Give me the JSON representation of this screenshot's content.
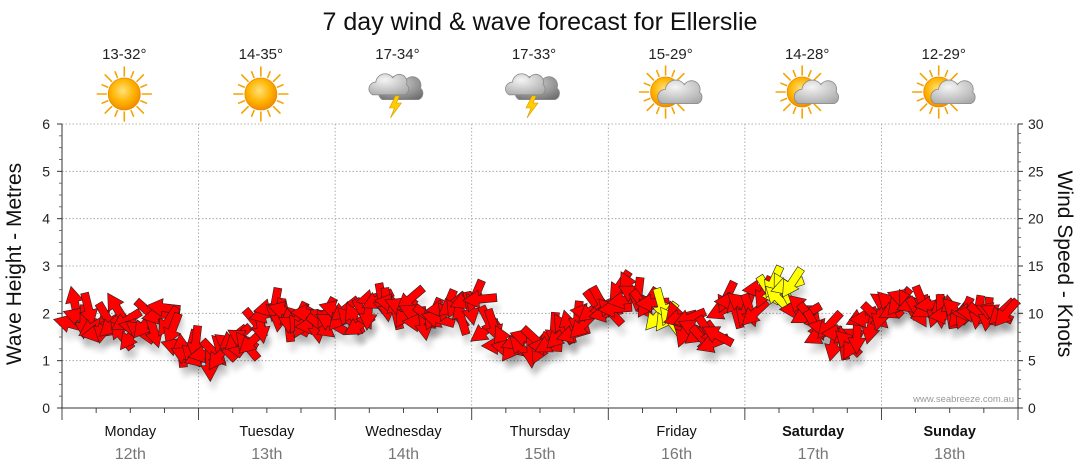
{
  "title": "7 day wind & wave forecast for Ellerslie",
  "credit": "www.seabreeze.com.au",
  "chart_data": {
    "type": "line",
    "left_axis": {
      "label": "Wave Height - Metres",
      "min": 0,
      "max": 6,
      "ticks": [
        0,
        1,
        2,
        3,
        4,
        5,
        6
      ]
    },
    "right_axis": {
      "label": "Wind Speed - Knots",
      "min": 0,
      "max": 30,
      "ticks": [
        0,
        5,
        10,
        15,
        20,
        25,
        30
      ]
    },
    "grid": "dotted",
    "days": [
      {
        "name": "Monday",
        "date": "12th",
        "temp": "13-32°",
        "icon": "sunny-icon",
        "weekend": false
      },
      {
        "name": "Tuesday",
        "date": "13th",
        "temp": "14-35°",
        "icon": "sunny-icon",
        "weekend": false
      },
      {
        "name": "Wednesday",
        "date": "14th",
        "temp": "17-34°",
        "icon": "storm-icon",
        "weekend": false
      },
      {
        "name": "Thursday",
        "date": "15th",
        "temp": "17-33°",
        "icon": "storm-icon",
        "weekend": false
      },
      {
        "name": "Friday",
        "date": "16th",
        "temp": "15-29°",
        "icon": "partly-cloudy-icon",
        "weekend": false
      },
      {
        "name": "Saturday",
        "date": "17th",
        "temp": "14-28°",
        "icon": "partly-cloudy-icon",
        "weekend": true
      },
      {
        "name": "Sunday",
        "date": "18th",
        "temp": "12-29°",
        "icon": "partly-cloudy-icon",
        "weekend": true
      }
    ],
    "series": [
      {
        "name": "Wind",
        "unit": "knots",
        "color_strong": "#ff0000",
        "color_light": "#ffff00",
        "values": [
          8.9,
          11.1,
          9.6,
          9.1,
          10.4,
          8.6,
          7.9,
          8.6,
          9.5,
          8.8,
          10.6,
          7.7,
          9.2,
          7.6,
          8.5,
          8.1,
          8.8,
          10.1,
          8.1,
          9.8,
          10.6,
          9.1,
          8.3,
          6.4,
          6.1,
          5.5,
          6.5,
          6.9,
          5.3,
          5.7,
          4.6,
          5.8,
          5.5,
          6.4,
          6.7,
          7.4,
          7.4,
          7.3,
          6.6,
          7.0,
          9.0,
          8.6,
          9.9,
          10.6,
          10.9,
          9.8,
          10.3,
          8.8,
          8.7,
          9.5,
          9.0,
          10.0,
          8.7,
          8.6,
          8.6,
          10.0,
          9.0,
          10.4,
          9.6,
          10.4,
          9.3,
          9.5,
          8.7,
          9.9,
          10.0,
          11.6,
          11.4,
          11.4,
          10.9,
          11.1,
          10.1,
          10.7,
          10.0,
          11.5,
          10.0,
          9.0,
          8.9,
          9.6,
          9.9,
          9.4,
          10.5,
          10.8,
          10.9,
          10.0,
          9.5,
          11.4,
          10.5,
          11.8,
          11.5,
          8.1,
          9.1,
          8.7,
          6.6,
          7.1,
          6.3,
          6.4,
          7.1,
          6.3,
          7.4,
          6.0,
          7.2,
          6.3,
          6.5,
          6.8,
          8.3,
          7.6,
          8.4,
          8.6,
          7.8,
          9.5,
          8.7,
          10.1,
          10.3,
          10.9,
          11.2,
          10.0,
          10.2,
          10.5,
          12.9,
          11.4,
          12.8,
          12.0,
          12.0,
          10.9,
          11.1,
          11.1,
          9.6,
          10.9,
          9.6,
          9.2,
          9.6,
          9.5,
          8.1,
          9.5,
          8.4,
          7.9,
          7.2,
          8.1,
          6.8,
          7.7,
          10.3,
          11.7,
          11.3,
          10.2,
          11.0,
          10.3,
          10.3,
          10.0,
          12.6,
          12.2,
          12.4,
          13.3,
          11.6,
          12.7,
          12.9,
          13.2,
          10.4,
          10.7,
          9.9,
          9.6,
          8.7,
          7.7,
          8.5,
          8.7,
          6.7,
          7.9,
          6.9,
          6.9,
          6.7,
          7.5,
          9.6,
          9.4,
          8.5,
          9.7,
          9.9,
          11.1,
          11.0,
          10.4,
          11.2,
          11.6,
          11.0,
          11.0,
          10.1,
          11.2,
          10.5,
          10.9,
          10.2,
          10.2,
          9.8,
          10.2,
          10.3,
          9.9,
          10.0,
          10.1,
          10.0,
          10.1,
          9.8,
          9.9,
          10.2,
          10.0,
          10.1,
          10.0
        ]
      },
      {
        "name": "Wave",
        "unit": "metres",
        "values": []
      }
    ],
    "x_hours": 168
  }
}
